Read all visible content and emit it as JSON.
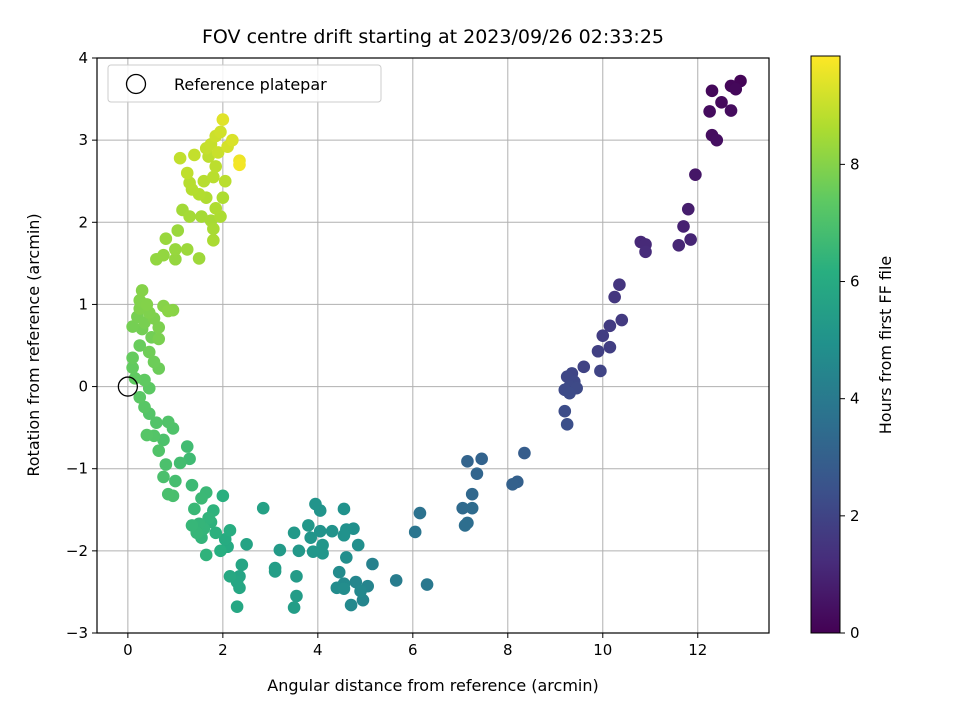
{
  "chart_data": {
    "type": "scatter",
    "title": "FOV centre drift starting at 2023/09/26 02:33:25",
    "xlabel": "Angular distance from reference (arcmin)",
    "ylabel": "Rotation from reference (arcmin)",
    "xlim": [
      -0.65,
      13.5
    ],
    "ylim": [
      -3,
      4
    ],
    "xticks": [
      0,
      2,
      4,
      6,
      8,
      10,
      12
    ],
    "yticks": [
      -3,
      -2,
      -1,
      0,
      1,
      2,
      3,
      4
    ],
    "grid": true,
    "legend": {
      "label": "Reference platepar",
      "position": "top-left"
    },
    "reference_point": {
      "x": 0,
      "y": 0
    },
    "colorbar": {
      "label": "Hours from first FF file",
      "range": [
        0,
        9.85
      ],
      "ticks": [
        0,
        2,
        4,
        6,
        8
      ],
      "colormap": "viridis"
    },
    "points": [
      {
        "x": 12.9,
        "y": 3.72,
        "t": 0.1
      },
      {
        "x": 12.7,
        "y": 3.66,
        "t": 0.15
      },
      {
        "x": 12.3,
        "y": 3.6,
        "t": 0.2
      },
      {
        "x": 12.8,
        "y": 3.62,
        "t": 0.2
      },
      {
        "x": 12.5,
        "y": 3.46,
        "t": 0.25
      },
      {
        "x": 12.25,
        "y": 3.35,
        "t": 0.3
      },
      {
        "x": 12.7,
        "y": 3.36,
        "t": 0.3
      },
      {
        "x": 12.3,
        "y": 3.06,
        "t": 0.35
      },
      {
        "x": 12.4,
        "y": 3.0,
        "t": 0.4
      },
      {
        "x": 11.95,
        "y": 2.58,
        "t": 0.6
      },
      {
        "x": 11.8,
        "y": 2.16,
        "t": 0.8
      },
      {
        "x": 11.7,
        "y": 1.95,
        "t": 0.9
      },
      {
        "x": 11.85,
        "y": 1.79,
        "t": 1.0
      },
      {
        "x": 11.6,
        "y": 1.72,
        "t": 1.05
      },
      {
        "x": 10.8,
        "y": 1.76,
        "t": 1.1
      },
      {
        "x": 10.9,
        "y": 1.73,
        "t": 1.15
      },
      {
        "x": 10.9,
        "y": 1.64,
        "t": 1.2
      },
      {
        "x": 10.35,
        "y": 1.24,
        "t": 1.5
      },
      {
        "x": 10.25,
        "y": 1.09,
        "t": 1.55
      },
      {
        "x": 10.4,
        "y": 0.81,
        "t": 1.65
      },
      {
        "x": 10.15,
        "y": 0.74,
        "t": 1.7
      },
      {
        "x": 10.0,
        "y": 0.62,
        "t": 1.75
      },
      {
        "x": 10.15,
        "y": 0.48,
        "t": 1.8
      },
      {
        "x": 9.9,
        "y": 0.43,
        "t": 1.85
      },
      {
        "x": 9.6,
        "y": 0.24,
        "t": 1.95
      },
      {
        "x": 9.95,
        "y": 0.19,
        "t": 2.0
      },
      {
        "x": 9.35,
        "y": 0.16,
        "t": 2.05
      },
      {
        "x": 9.25,
        "y": 0.12,
        "t": 2.1
      },
      {
        "x": 9.4,
        "y": 0.06,
        "t": 2.12
      },
      {
        "x": 9.3,
        "y": 0.0,
        "t": 2.15
      },
      {
        "x": 9.45,
        "y": -0.02,
        "t": 2.18
      },
      {
        "x": 9.2,
        "y": -0.04,
        "t": 2.2
      },
      {
        "x": 9.3,
        "y": -0.08,
        "t": 2.22
      },
      {
        "x": 9.2,
        "y": -0.3,
        "t": 2.3
      },
      {
        "x": 9.25,
        "y": -0.46,
        "t": 2.35
      },
      {
        "x": 8.35,
        "y": -0.81,
        "t": 2.9
      },
      {
        "x": 7.45,
        "y": -0.88,
        "t": 3.1
      },
      {
        "x": 7.15,
        "y": -0.91,
        "t": 3.15
      },
      {
        "x": 7.35,
        "y": -1.06,
        "t": 3.2
      },
      {
        "x": 8.2,
        "y": -1.16,
        "t": 3.0
      },
      {
        "x": 8.1,
        "y": -1.19,
        "t": 3.05
      },
      {
        "x": 7.25,
        "y": -1.31,
        "t": 3.3
      },
      {
        "x": 7.05,
        "y": -1.48,
        "t": 3.4
      },
      {
        "x": 7.25,
        "y": -1.48,
        "t": 3.42
      },
      {
        "x": 7.15,
        "y": -1.66,
        "t": 3.5
      },
      {
        "x": 7.1,
        "y": -1.69,
        "t": 3.55
      },
      {
        "x": 6.15,
        "y": -1.54,
        "t": 3.7
      },
      {
        "x": 6.05,
        "y": -1.77,
        "t": 3.8
      },
      {
        "x": 6.3,
        "y": -2.41,
        "t": 3.95
      },
      {
        "x": 5.65,
        "y": -2.36,
        "t": 4.1
      },
      {
        "x": 5.15,
        "y": -2.16,
        "t": 4.3
      },
      {
        "x": 5.05,
        "y": -2.43,
        "t": 4.4
      },
      {
        "x": 4.95,
        "y": -2.6,
        "t": 4.45
      },
      {
        "x": 4.8,
        "y": -2.38,
        "t": 4.5
      },
      {
        "x": 4.9,
        "y": -2.49,
        "t": 4.55
      },
      {
        "x": 4.7,
        "y": -2.66,
        "t": 4.6
      },
      {
        "x": 4.55,
        "y": -2.4,
        "t": 4.65
      },
      {
        "x": 4.45,
        "y": -2.26,
        "t": 4.7
      },
      {
        "x": 4.4,
        "y": -2.45,
        "t": 4.72
      },
      {
        "x": 4.55,
        "y": -2.46,
        "t": 4.75
      },
      {
        "x": 4.6,
        "y": -2.08,
        "t": 4.8
      },
      {
        "x": 4.85,
        "y": -1.93,
        "t": 4.85
      },
      {
        "x": 4.75,
        "y": -1.73,
        "t": 4.9
      },
      {
        "x": 4.6,
        "y": -1.74,
        "t": 4.92
      },
      {
        "x": 4.55,
        "y": -1.49,
        "t": 4.95
      },
      {
        "x": 4.55,
        "y": -1.81,
        "t": 4.97
      },
      {
        "x": 4.3,
        "y": -1.76,
        "t": 5.0
      },
      {
        "x": 4.05,
        "y": -1.76,
        "t": 5.02
      },
      {
        "x": 4.05,
        "y": -1.51,
        "t": 5.05
      },
      {
        "x": 3.95,
        "y": -1.43,
        "t": 5.07
      },
      {
        "x": 3.85,
        "y": -1.84,
        "t": 5.1
      },
      {
        "x": 4.1,
        "y": -1.93,
        "t": 5.12
      },
      {
        "x": 4.1,
        "y": -2.03,
        "t": 5.15
      },
      {
        "x": 3.9,
        "y": -2.01,
        "t": 5.17
      },
      {
        "x": 3.8,
        "y": -1.69,
        "t": 5.2
      },
      {
        "x": 3.6,
        "y": -2.0,
        "t": 5.22
      },
      {
        "x": 3.5,
        "y": -1.78,
        "t": 5.25
      },
      {
        "x": 3.2,
        "y": -1.99,
        "t": 5.3
      },
      {
        "x": 3.55,
        "y": -2.31,
        "t": 5.35
      },
      {
        "x": 3.55,
        "y": -2.55,
        "t": 5.4
      },
      {
        "x": 3.5,
        "y": -2.69,
        "t": 5.42
      },
      {
        "x": 3.1,
        "y": -2.21,
        "t": 5.45
      },
      {
        "x": 3.1,
        "y": -2.25,
        "t": 5.47
      },
      {
        "x": 2.85,
        "y": -1.48,
        "t": 5.6
      },
      {
        "x": 2.5,
        "y": -1.92,
        "t": 5.7
      },
      {
        "x": 2.35,
        "y": -2.31,
        "t": 5.75
      },
      {
        "x": 2.4,
        "y": -2.17,
        "t": 5.77
      },
      {
        "x": 2.35,
        "y": -2.45,
        "t": 5.8
      },
      {
        "x": 2.3,
        "y": -2.38,
        "t": 5.82
      },
      {
        "x": 2.3,
        "y": -2.68,
        "t": 5.85
      },
      {
        "x": 2.15,
        "y": -2.31,
        "t": 5.9
      },
      {
        "x": 2.1,
        "y": -1.95,
        "t": 6.0
      },
      {
        "x": 2.05,
        "y": -1.86,
        "t": 6.05
      },
      {
        "x": 2.15,
        "y": -1.75,
        "t": 6.1
      },
      {
        "x": 1.95,
        "y": -2.0,
        "t": 6.15
      },
      {
        "x": 2.0,
        "y": -1.33,
        "t": 6.2
      },
      {
        "x": 1.85,
        "y": -1.78,
        "t": 6.25
      },
      {
        "x": 1.75,
        "y": -1.65,
        "t": 6.3
      },
      {
        "x": 1.8,
        "y": -1.51,
        "t": 6.32
      },
      {
        "x": 1.65,
        "y": -2.05,
        "t": 6.35
      },
      {
        "x": 1.7,
        "y": -1.6,
        "t": 6.38
      },
      {
        "x": 1.55,
        "y": -1.84,
        "t": 6.4
      },
      {
        "x": 1.6,
        "y": -1.73,
        "t": 6.42
      },
      {
        "x": 1.5,
        "y": -1.67,
        "t": 6.45
      },
      {
        "x": 1.45,
        "y": -1.78,
        "t": 6.48
      },
      {
        "x": 1.35,
        "y": -1.69,
        "t": 6.5
      },
      {
        "x": 1.4,
        "y": -1.49,
        "t": 6.55
      },
      {
        "x": 1.65,
        "y": -1.29,
        "t": 6.58
      },
      {
        "x": 1.55,
        "y": -1.36,
        "t": 6.6
      },
      {
        "x": 1.35,
        "y": -1.2,
        "t": 6.65
      },
      {
        "x": 1.3,
        "y": -0.88,
        "t": 6.7
      },
      {
        "x": 1.25,
        "y": -0.73,
        "t": 6.75
      },
      {
        "x": 1.1,
        "y": -0.93,
        "t": 6.8
      },
      {
        "x": 1.0,
        "y": -1.15,
        "t": 6.85
      },
      {
        "x": 0.95,
        "y": -1.33,
        "t": 6.9
      },
      {
        "x": 0.85,
        "y": -1.31,
        "t": 6.92
      },
      {
        "x": 0.75,
        "y": -1.1,
        "t": 6.95
      },
      {
        "x": 0.8,
        "y": -0.95,
        "t": 6.97
      },
      {
        "x": 0.75,
        "y": -0.65,
        "t": 7.0
      },
      {
        "x": 0.95,
        "y": -0.51,
        "t": 7.05
      },
      {
        "x": 0.85,
        "y": -0.43,
        "t": 7.08
      },
      {
        "x": 0.65,
        "y": -0.78,
        "t": 7.1
      },
      {
        "x": 0.6,
        "y": -0.44,
        "t": 7.12
      },
      {
        "x": 0.45,
        "y": -0.33,
        "t": 7.15
      },
      {
        "x": 0.55,
        "y": -0.6,
        "t": 7.17
      },
      {
        "x": 0.4,
        "y": -0.59,
        "t": 7.2
      },
      {
        "x": 0.35,
        "y": -0.25,
        "t": 7.25
      },
      {
        "x": 0.25,
        "y": -0.13,
        "t": 7.3
      },
      {
        "x": 0.45,
        "y": -0.02,
        "t": 7.35
      },
      {
        "x": 0.35,
        "y": 0.08,
        "t": 7.4
      },
      {
        "x": 0.15,
        "y": 0.1,
        "t": 7.42
      },
      {
        "x": 0.1,
        "y": 0.23,
        "t": 7.45
      },
      {
        "x": 0.1,
        "y": 0.35,
        "t": 7.5
      },
      {
        "x": 0.25,
        "y": 0.5,
        "t": 7.55
      },
      {
        "x": 0.65,
        "y": 0.22,
        "t": 7.6
      },
      {
        "x": 0.55,
        "y": 0.3,
        "t": 7.62
      },
      {
        "x": 0.45,
        "y": 0.42,
        "t": 7.65
      },
      {
        "x": 0.5,
        "y": 0.6,
        "t": 7.7
      },
      {
        "x": 0.3,
        "y": 0.7,
        "t": 7.72
      },
      {
        "x": 0.1,
        "y": 0.73,
        "t": 7.75
      },
      {
        "x": 0.2,
        "y": 0.85,
        "t": 7.78
      },
      {
        "x": 0.35,
        "y": 0.78,
        "t": 7.8
      },
      {
        "x": 0.65,
        "y": 0.58,
        "t": 7.82
      },
      {
        "x": 0.65,
        "y": 0.72,
        "t": 7.85
      },
      {
        "x": 0.55,
        "y": 0.83,
        "t": 7.87
      },
      {
        "x": 0.45,
        "y": 0.9,
        "t": 7.9
      },
      {
        "x": 0.25,
        "y": 0.95,
        "t": 7.92
      },
      {
        "x": 0.25,
        "y": 1.05,
        "t": 7.95
      },
      {
        "x": 0.4,
        "y": 1.0,
        "t": 7.97
      },
      {
        "x": 0.3,
        "y": 1.17,
        "t": 8.0
      },
      {
        "x": 0.75,
        "y": 0.98,
        "t": 8.02
      },
      {
        "x": 0.95,
        "y": 0.93,
        "t": 8.05
      },
      {
        "x": 0.85,
        "y": 0.92,
        "t": 8.07
      },
      {
        "x": 0.6,
        "y": 1.55,
        "t": 8.2
      },
      {
        "x": 0.75,
        "y": 1.6,
        "t": 8.22
      },
      {
        "x": 1.0,
        "y": 1.55,
        "t": 8.25
      },
      {
        "x": 1.0,
        "y": 1.67,
        "t": 8.27
      },
      {
        "x": 0.8,
        "y": 1.8,
        "t": 8.3
      },
      {
        "x": 1.05,
        "y": 1.9,
        "t": 8.32
      },
      {
        "x": 1.25,
        "y": 1.67,
        "t": 8.35
      },
      {
        "x": 1.5,
        "y": 1.56,
        "t": 8.38
      },
      {
        "x": 1.15,
        "y": 2.15,
        "t": 8.45
      },
      {
        "x": 1.3,
        "y": 2.07,
        "t": 8.48
      },
      {
        "x": 1.55,
        "y": 2.07,
        "t": 8.5
      },
      {
        "x": 1.75,
        "y": 2.02,
        "t": 8.52
      },
      {
        "x": 1.8,
        "y": 1.92,
        "t": 8.55
      },
      {
        "x": 1.8,
        "y": 1.78,
        "t": 8.57
      },
      {
        "x": 1.95,
        "y": 2.07,
        "t": 8.6
      },
      {
        "x": 2.0,
        "y": 2.3,
        "t": 8.62
      },
      {
        "x": 1.85,
        "y": 2.17,
        "t": 8.65
      },
      {
        "x": 1.65,
        "y": 2.3,
        "t": 8.67
      },
      {
        "x": 1.5,
        "y": 2.34,
        "t": 8.7
      },
      {
        "x": 1.35,
        "y": 2.4,
        "t": 8.72
      },
      {
        "x": 1.3,
        "y": 2.48,
        "t": 8.75
      },
      {
        "x": 1.6,
        "y": 2.5,
        "t": 8.77
      },
      {
        "x": 1.8,
        "y": 2.55,
        "t": 8.8
      },
      {
        "x": 2.05,
        "y": 2.5,
        "t": 8.82
      },
      {
        "x": 1.85,
        "y": 2.68,
        "t": 8.85
      },
      {
        "x": 1.7,
        "y": 2.8,
        "t": 8.87
      },
      {
        "x": 1.25,
        "y": 2.6,
        "t": 8.9
      },
      {
        "x": 1.1,
        "y": 2.78,
        "t": 8.92
      },
      {
        "x": 1.4,
        "y": 2.82,
        "t": 8.95
      },
      {
        "x": 1.65,
        "y": 2.9,
        "t": 8.97
      },
      {
        "x": 1.75,
        "y": 2.95,
        "t": 9.0
      },
      {
        "x": 1.9,
        "y": 2.85,
        "t": 9.05
      },
      {
        "x": 1.85,
        "y": 3.05,
        "t": 9.1
      },
      {
        "x": 1.95,
        "y": 3.1,
        "t": 9.15
      },
      {
        "x": 2.1,
        "y": 2.92,
        "t": 9.2
      },
      {
        "x": 2.2,
        "y": 3.0,
        "t": 9.3
      },
      {
        "x": 2.0,
        "y": 3.25,
        "t": 9.4
      },
      {
        "x": 2.35,
        "y": 2.75,
        "t": 9.6
      },
      {
        "x": 2.35,
        "y": 2.7,
        "t": 9.7
      }
    ]
  }
}
